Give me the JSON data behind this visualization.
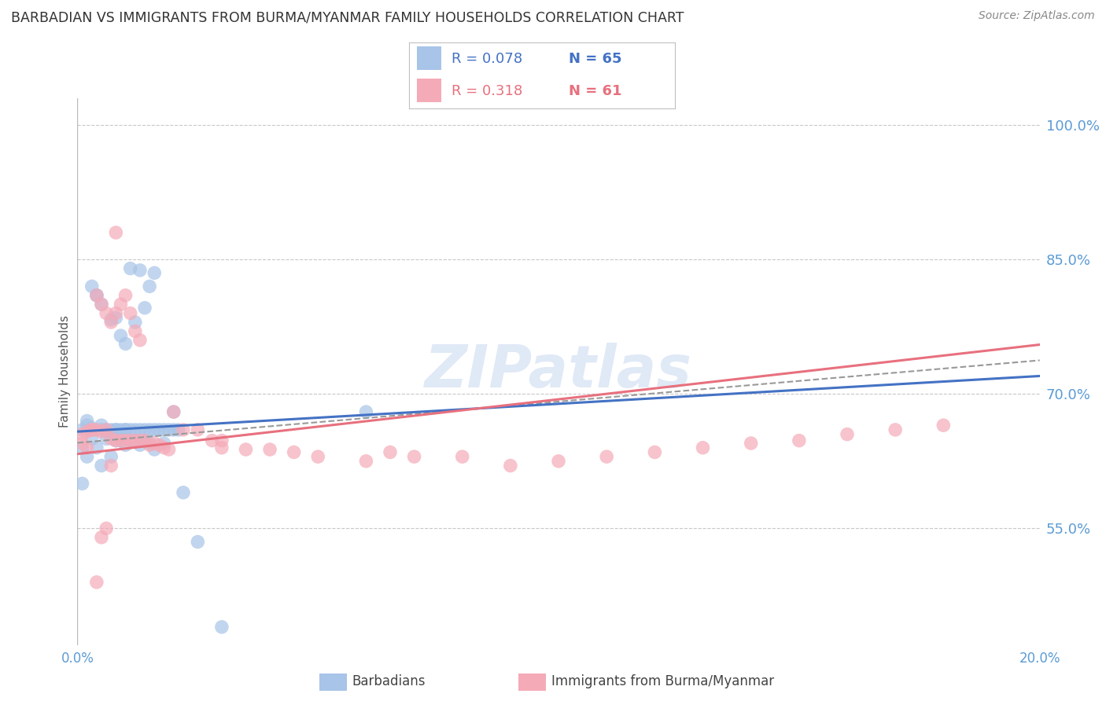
{
  "title": "BARBADIAN VS IMMIGRANTS FROM BURMA/MYANMAR FAMILY HOUSEHOLDS CORRELATION CHART",
  "source": "Source: ZipAtlas.com",
  "ylabel": "Family Households",
  "y_tick_labels_right": [
    "55.0%",
    "70.0%",
    "85.0%",
    "100.0%"
  ],
  "y_tick_values": [
    0.55,
    0.7,
    0.85,
    1.0
  ],
  "xlim": [
    0.0,
    0.2
  ],
  "ylim": [
    0.42,
    1.03
  ],
  "x_ticks": [
    0.0,
    0.2
  ],
  "x_tick_labels": [
    "0.0%",
    "20.0%"
  ],
  "legend_labels": [
    "Barbadians",
    "Immigrants from Burma/Myanmar"
  ],
  "R_blue": 0.078,
  "N_blue": 65,
  "R_pink": 0.318,
  "N_pink": 61,
  "blue_color": "#a8c4e8",
  "pink_color": "#f5aab8",
  "blue_line_color": "#4472c4",
  "pink_line_color": "#e8707e",
  "dashed_line_color": "#999999",
  "axis_color": "#5b9bd5",
  "grid_color": "#c8c8c8",
  "background_color": "#ffffff",
  "title_fontsize": 12.5,
  "axis_label_fontsize": 11,
  "tick_fontsize": 12,
  "blue_trend_x0": 0.0,
  "blue_trend_y0": 0.658,
  "blue_trend_x1": 0.2,
  "blue_trend_y1": 0.72,
  "pink_trend_x0": 0.0,
  "pink_trend_y0": 0.633,
  "pink_trend_x1": 0.2,
  "pink_trend_y1": 0.755,
  "blue_scatter_x": [
    0.001,
    0.001,
    0.002,
    0.002,
    0.003,
    0.003,
    0.003,
    0.004,
    0.004,
    0.005,
    0.005,
    0.005,
    0.006,
    0.006,
    0.007,
    0.007,
    0.007,
    0.008,
    0.008,
    0.008,
    0.009,
    0.009,
    0.009,
    0.01,
    0.01,
    0.01,
    0.011,
    0.011,
    0.012,
    0.012,
    0.013,
    0.013,
    0.014,
    0.014,
    0.015,
    0.015,
    0.016,
    0.016,
    0.017,
    0.018,
    0.019,
    0.02,
    0.021,
    0.001,
    0.002,
    0.003,
    0.004,
    0.005,
    0.006,
    0.007,
    0.008,
    0.009,
    0.01,
    0.011,
    0.012,
    0.013,
    0.014,
    0.015,
    0.016,
    0.018,
    0.02,
    0.022,
    0.025,
    0.03,
    0.06
  ],
  "blue_scatter_y": [
    0.66,
    0.64,
    0.67,
    0.665,
    0.66,
    0.662,
    0.82,
    0.81,
    0.81,
    0.66,
    0.665,
    0.8,
    0.658,
    0.66,
    0.66,
    0.658,
    0.783,
    0.66,
    0.66,
    0.785,
    0.658,
    0.66,
    0.765,
    0.66,
    0.66,
    0.756,
    0.66,
    0.84,
    0.66,
    0.78,
    0.66,
    0.838,
    0.66,
    0.796,
    0.66,
    0.82,
    0.66,
    0.835,
    0.66,
    0.66,
    0.66,
    0.66,
    0.66,
    0.6,
    0.63,
    0.65,
    0.64,
    0.62,
    0.65,
    0.63,
    0.648,
    0.648,
    0.643,
    0.648,
    0.648,
    0.643,
    0.648,
    0.645,
    0.638,
    0.645,
    0.68,
    0.59,
    0.535,
    0.44,
    0.68
  ],
  "pink_scatter_x": [
    0.001,
    0.001,
    0.002,
    0.002,
    0.003,
    0.003,
    0.004,
    0.004,
    0.005,
    0.005,
    0.006,
    0.006,
    0.007,
    0.007,
    0.008,
    0.008,
    0.009,
    0.009,
    0.01,
    0.01,
    0.011,
    0.011,
    0.012,
    0.012,
    0.013,
    0.013,
    0.014,
    0.015,
    0.016,
    0.017,
    0.018,
    0.019,
    0.02,
    0.022,
    0.025,
    0.028,
    0.03,
    0.03,
    0.035,
    0.04,
    0.045,
    0.05,
    0.06,
    0.065,
    0.07,
    0.08,
    0.09,
    0.1,
    0.11,
    0.12,
    0.13,
    0.14,
    0.15,
    0.16,
    0.17,
    0.18,
    0.004,
    0.005,
    0.006,
    0.007,
    0.008
  ],
  "pink_scatter_y": [
    0.655,
    0.645,
    0.658,
    0.64,
    0.66,
    0.66,
    0.66,
    0.81,
    0.658,
    0.8,
    0.66,
    0.79,
    0.65,
    0.78,
    0.648,
    0.79,
    0.648,
    0.8,
    0.648,
    0.81,
    0.648,
    0.79,
    0.648,
    0.77,
    0.648,
    0.76,
    0.648,
    0.643,
    0.645,
    0.643,
    0.64,
    0.638,
    0.68,
    0.66,
    0.66,
    0.648,
    0.648,
    0.64,
    0.638,
    0.638,
    0.635,
    0.63,
    0.625,
    0.635,
    0.63,
    0.63,
    0.62,
    0.625,
    0.63,
    0.635,
    0.64,
    0.645,
    0.648,
    0.655,
    0.66,
    0.665,
    0.49,
    0.54,
    0.55,
    0.62,
    0.88
  ]
}
